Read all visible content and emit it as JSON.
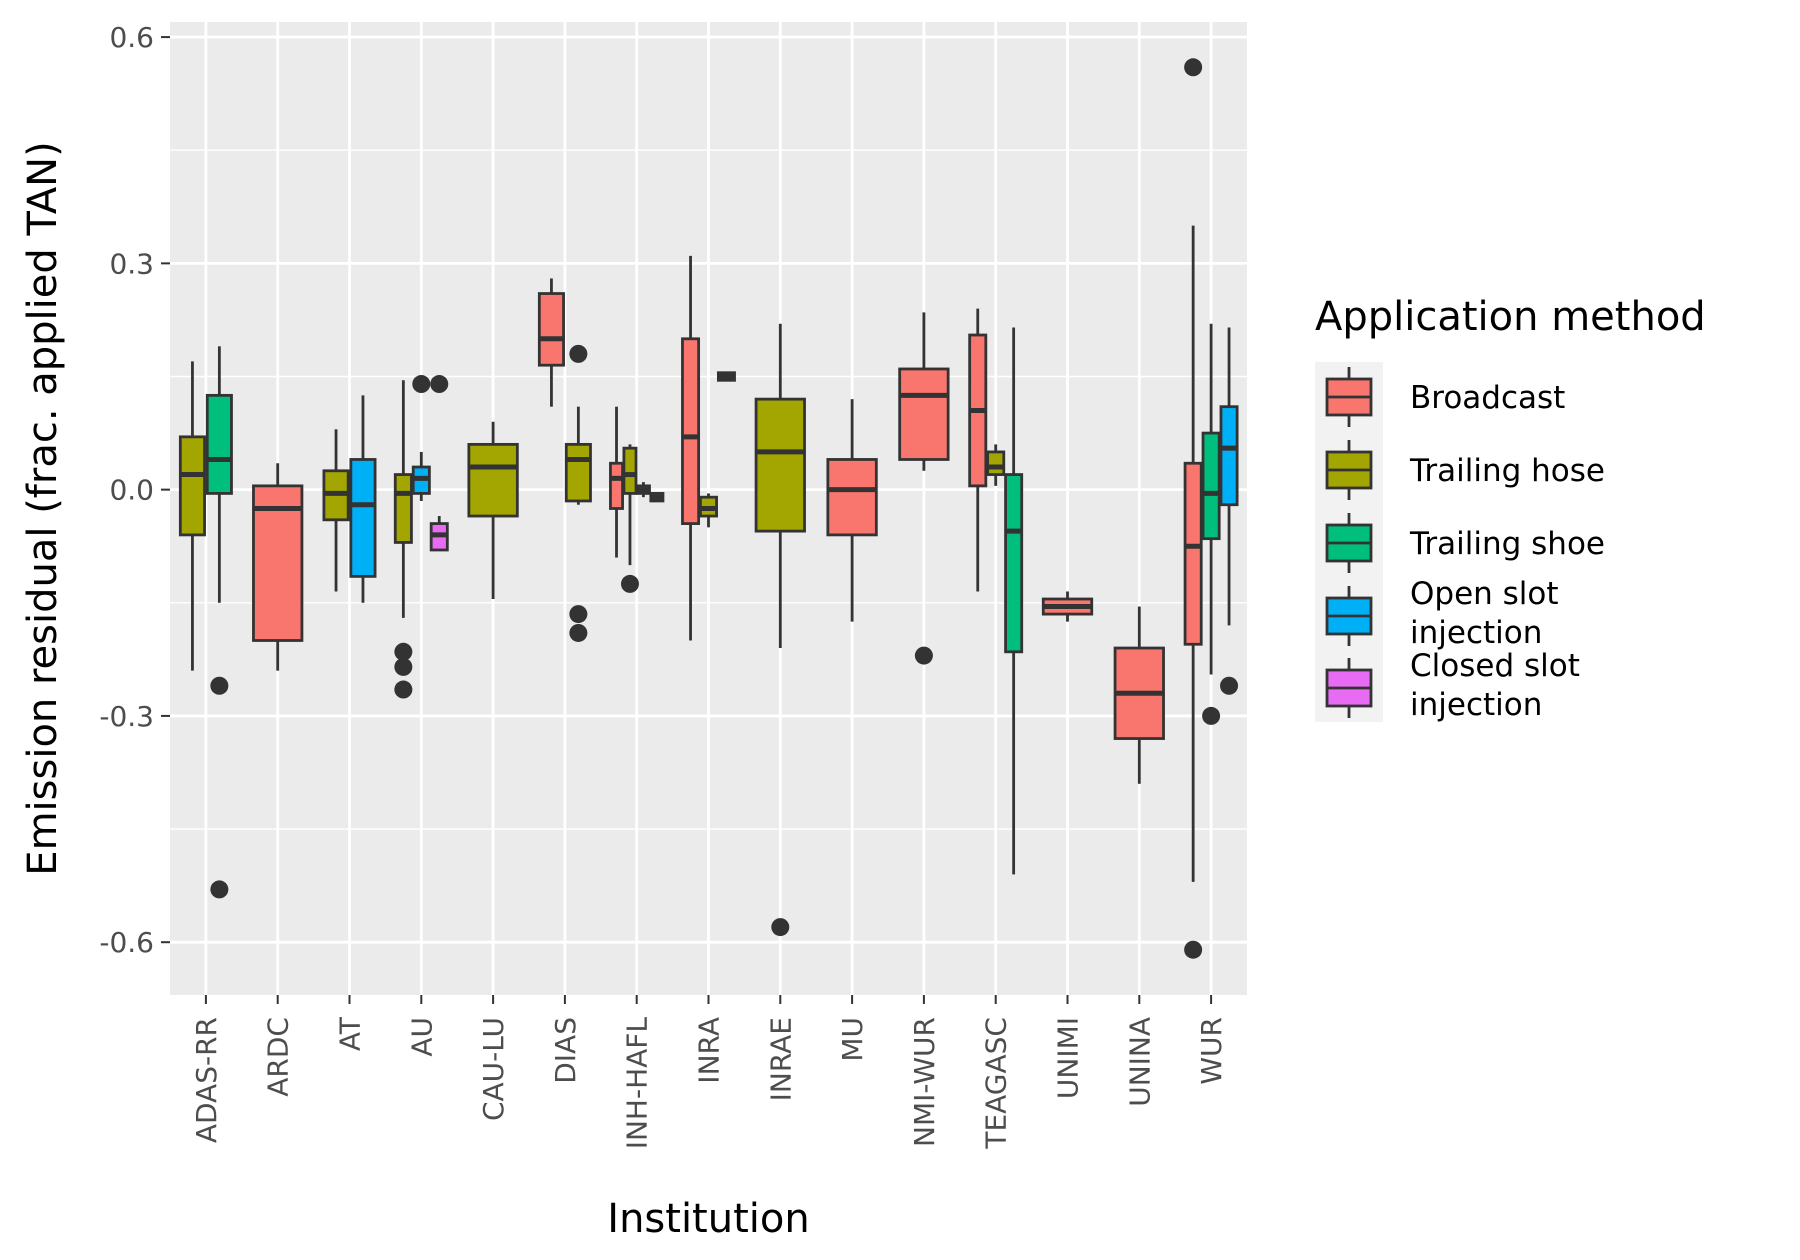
{
  "chart_data": {
    "type": "boxplot",
    "xlabel": "Institution",
    "ylabel": "Emission residual (frac. applied TAN)",
    "ylim": [
      -0.67,
      0.62
    ],
    "y_ticks": [
      -0.6,
      -0.3,
      0.0,
      0.3,
      0.6
    ],
    "y_tick_labels": [
      "-0.6",
      "-0.3",
      "0.0",
      "0.3",
      "0.6"
    ],
    "grid": true,
    "legend": {
      "title": "Application method",
      "placement": "right",
      "items": [
        {
          "label": "Broadcast",
          "color": "#F8766D"
        },
        {
          "label": "Trailing hose",
          "color": "#A3A500"
        },
        {
          "label": "Trailing shoe",
          "color": "#00BF7D"
        },
        {
          "label": "Open slot injection",
          "color": "#00B0F6",
          "lines": [
            "Open slot",
            "injection"
          ]
        },
        {
          "label": "Closed slot injection",
          "color": "#E76BF3",
          "lines": [
            "Closed slot",
            "injection"
          ]
        }
      ]
    },
    "categories": [
      "ADAS-RR",
      "ARDC",
      "AT",
      "AU",
      "CAU-LU",
      "DIAS",
      "INH-HAFL",
      "INRA",
      "INRAE",
      "MU",
      "NMI-WUR",
      "TEAGASC",
      "UNIMI",
      "UNINA",
      "WUR"
    ],
    "boxes": [
      {
        "category": "ADAS-RR",
        "method": "Trailing hose",
        "dodge": [
          0,
          2
        ],
        "whislo": -0.24,
        "q1": -0.06,
        "med": 0.02,
        "q3": 0.07,
        "whishi": 0.17,
        "outliers": []
      },
      {
        "category": "ADAS-RR",
        "method": "Trailing shoe",
        "dodge": [
          1,
          2
        ],
        "whislo": -0.15,
        "q1": -0.005,
        "med": 0.04,
        "q3": 0.125,
        "whishi": 0.19,
        "outliers": [
          -0.26,
          -0.53
        ]
      },
      {
        "category": "ARDC",
        "method": "Broadcast",
        "dodge": [
          0,
          1
        ],
        "whislo": -0.24,
        "q1": -0.2,
        "med": -0.025,
        "q3": 0.005,
        "whishi": 0.035,
        "outliers": []
      },
      {
        "category": "AT",
        "method": "Trailing hose",
        "dodge": [
          0,
          2
        ],
        "whislo": -0.135,
        "q1": -0.04,
        "med": -0.005,
        "q3": 0.025,
        "whishi": 0.08,
        "outliers": []
      },
      {
        "category": "AT",
        "method": "Open slot injection",
        "dodge": [
          1,
          2
        ],
        "whislo": -0.15,
        "q1": -0.115,
        "med": -0.02,
        "q3": 0.04,
        "whishi": 0.125,
        "outliers": []
      },
      {
        "category": "AU",
        "method": "Trailing hose",
        "dodge": [
          0,
          3
        ],
        "whislo": -0.17,
        "q1": -0.07,
        "med": -0.005,
        "q3": 0.02,
        "whishi": 0.145,
        "outliers": [
          -0.215,
          -0.235,
          -0.265
        ]
      },
      {
        "category": "AU",
        "method": "Open slot injection",
        "dodge": [
          1,
          3
        ],
        "whislo": -0.015,
        "q1": -0.005,
        "med": 0.015,
        "q3": 0.03,
        "whishi": 0.05,
        "outliers": [
          0.14
        ]
      },
      {
        "category": "AU",
        "method": "Closed slot injection",
        "dodge": [
          2,
          3
        ],
        "whislo": -0.08,
        "q1": -0.08,
        "med": -0.06,
        "q3": -0.045,
        "whishi": -0.035,
        "outliers": [
          0.14
        ]
      },
      {
        "category": "CAU-LU",
        "method": "Trailing hose",
        "dodge": [
          0,
          1
        ],
        "whislo": -0.145,
        "q1": -0.035,
        "med": 0.03,
        "q3": 0.06,
        "whishi": 0.09,
        "outliers": []
      },
      {
        "category": "DIAS",
        "method": "Broadcast",
        "dodge": [
          0,
          2
        ],
        "whislo": 0.11,
        "q1": 0.165,
        "med": 0.2,
        "q3": 0.26,
        "whishi": 0.28,
        "outliers": []
      },
      {
        "category": "DIAS",
        "method": "Trailing hose",
        "dodge": [
          1,
          2
        ],
        "whislo": -0.02,
        "q1": -0.015,
        "med": 0.04,
        "q3": 0.06,
        "whishi": 0.11,
        "outliers": [
          0.18,
          -0.165,
          -0.19
        ]
      },
      {
        "category": "INH-HAFL",
        "method": "Broadcast",
        "dodge": [
          0,
          4
        ],
        "whislo": -0.09,
        "q1": -0.025,
        "med": 0.015,
        "q3": 0.035,
        "whishi": 0.11,
        "outliers": []
      },
      {
        "category": "INH-HAFL",
        "method": "Trailing hose",
        "dodge": [
          1,
          4
        ],
        "whislo": -0.1,
        "q1": -0.005,
        "med": 0.02,
        "q3": 0.055,
        "whishi": 0.06,
        "outliers": [
          -0.125
        ]
      },
      {
        "category": "INH-HAFL",
        "method": "Trailing shoe",
        "dodge": [
          2,
          4
        ],
        "whislo": -0.01,
        "q1": -0.005,
        "med": 0.0,
        "q3": 0.005,
        "whishi": 0.01,
        "outliers": []
      },
      {
        "category": "INH-HAFL",
        "method": "Open slot injection",
        "dodge": [
          3,
          4
        ],
        "whislo": -0.015,
        "q1": -0.015,
        "med": -0.01,
        "q3": -0.005,
        "whishi": -0.005,
        "outliers": []
      },
      {
        "category": "INRA",
        "method": "Broadcast",
        "dodge": [
          0,
          3
        ],
        "whislo": -0.2,
        "q1": -0.045,
        "med": 0.07,
        "q3": 0.2,
        "whishi": 0.31,
        "outliers": []
      },
      {
        "category": "INRA",
        "method": "Trailing hose",
        "dodge": [
          1,
          3
        ],
        "whislo": -0.05,
        "q1": -0.035,
        "med": -0.025,
        "q3": -0.01,
        "whishi": -0.005,
        "outliers": []
      },
      {
        "category": "INRA",
        "method": "Broadcast",
        "dodge": [
          2,
          3
        ],
        "whislo": 0.145,
        "q1": 0.145,
        "med": 0.15,
        "q3": 0.155,
        "whishi": 0.155,
        "outliers": []
      },
      {
        "category": "INRAE",
        "method": "Trailing hose",
        "dodge": [
          0,
          1
        ],
        "whislo": -0.21,
        "q1": -0.055,
        "med": 0.05,
        "q3": 0.12,
        "whishi": 0.22,
        "outliers": [
          -0.58
        ]
      },
      {
        "category": "MU",
        "method": "Broadcast",
        "dodge": [
          0,
          1
        ],
        "whislo": -0.175,
        "q1": -0.06,
        "med": 0.0,
        "q3": 0.04,
        "whishi": 0.12,
        "outliers": []
      },
      {
        "category": "NMI-WUR",
        "method": "Broadcast",
        "dodge": [
          0,
          1
        ],
        "whislo": 0.025,
        "q1": 0.04,
        "med": 0.125,
        "q3": 0.16,
        "whishi": 0.235,
        "outliers": [
          -0.22
        ]
      },
      {
        "category": "TEAGASC",
        "method": "Broadcast",
        "dodge": [
          0,
          3
        ],
        "whislo": -0.135,
        "q1": 0.005,
        "med": 0.105,
        "q3": 0.205,
        "whishi": 0.24,
        "outliers": []
      },
      {
        "category": "TEAGASC",
        "method": "Trailing hose",
        "dodge": [
          1,
          3
        ],
        "whislo": 0.005,
        "q1": 0.02,
        "med": 0.03,
        "q3": 0.05,
        "whishi": 0.06,
        "outliers": []
      },
      {
        "category": "TEAGASC",
        "method": "Trailing shoe",
        "dodge": [
          2,
          3
        ],
        "whislo": -0.51,
        "q1": -0.215,
        "med": -0.055,
        "q3": 0.02,
        "whishi": 0.215,
        "outliers": []
      },
      {
        "category": "UNIMI",
        "method": "Broadcast",
        "dodge": [
          0,
          1
        ],
        "whislo": -0.175,
        "q1": -0.165,
        "med": -0.155,
        "q3": -0.145,
        "whishi": -0.135,
        "outliers": []
      },
      {
        "category": "UNINA",
        "method": "Broadcast",
        "dodge": [
          0,
          1
        ],
        "whislo": -0.39,
        "q1": -0.33,
        "med": -0.27,
        "q3": -0.21,
        "whishi": -0.155,
        "outliers": []
      },
      {
        "category": "WUR",
        "method": "Broadcast",
        "dodge": [
          0,
          3
        ],
        "whislo": -0.52,
        "q1": -0.205,
        "med": -0.075,
        "q3": 0.035,
        "whishi": 0.35,
        "outliers": [
          0.56,
          -0.61
        ]
      },
      {
        "category": "WUR",
        "method": "Trailing shoe",
        "dodge": [
          1,
          3
        ],
        "whislo": -0.245,
        "q1": -0.065,
        "med": -0.005,
        "q3": 0.075,
        "whishi": 0.22,
        "outliers": [
          -0.3
        ]
      },
      {
        "category": "WUR",
        "method": "Open slot injection",
        "dodge": [
          2,
          3
        ],
        "whislo": -0.18,
        "q1": -0.02,
        "med": 0.055,
        "q3": 0.11,
        "whishi": 0.215,
        "outliers": [
          -0.26
        ]
      }
    ]
  }
}
